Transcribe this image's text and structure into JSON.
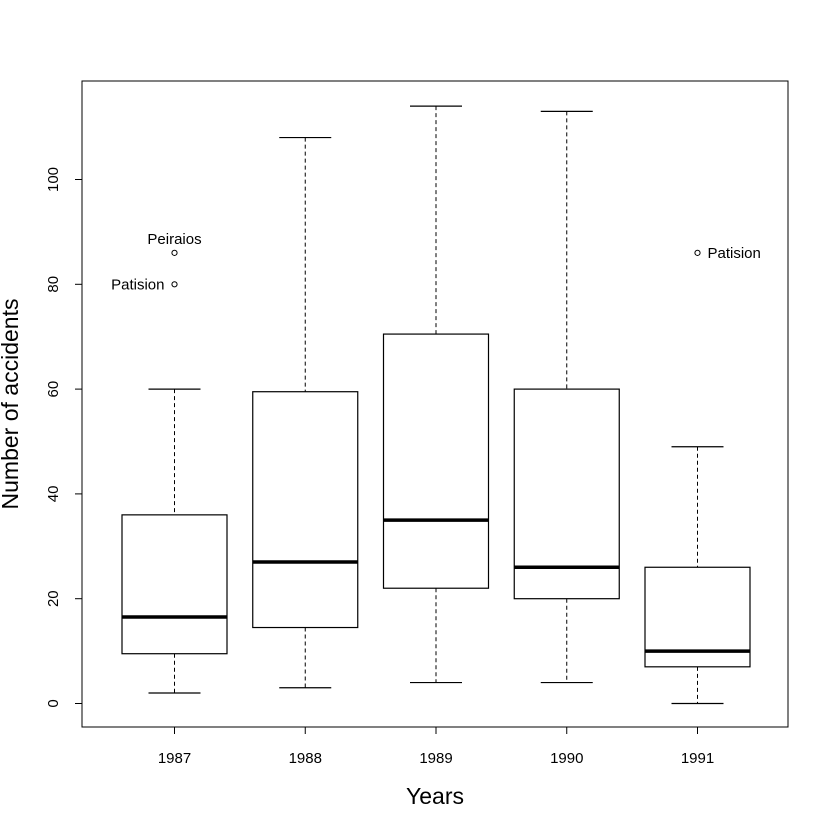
{
  "chart_data": {
    "type": "box",
    "title": "",
    "xlabel": "Years",
    "ylabel": "Number of accidents",
    "ylim": [
      -4.5,
      118
    ],
    "y_ticks": [
      0,
      20,
      40,
      60,
      80,
      100
    ],
    "categories": [
      "1987",
      "1988",
      "1989",
      "1990",
      "1991"
    ],
    "boxes": [
      {
        "category": "1987",
        "whisker_low": 2,
        "q1": 9.5,
        "median": 16.5,
        "q3": 36,
        "whisker_high": 60,
        "outliers": [
          {
            "value": 86,
            "label": "Peiraios"
          },
          {
            "value": 80,
            "label": "Patision"
          }
        ]
      },
      {
        "category": "1988",
        "whisker_low": 3,
        "q1": 14.5,
        "median": 27,
        "q3": 59.5,
        "whisker_high": 108,
        "outliers": []
      },
      {
        "category": "1989",
        "whisker_low": 4,
        "q1": 22,
        "median": 35,
        "q3": 70.5,
        "whisker_high": 114,
        "outliers": []
      },
      {
        "category": "1990",
        "whisker_low": 4,
        "q1": 20,
        "median": 26,
        "q3": 60,
        "whisker_high": 113,
        "outliers": []
      },
      {
        "category": "1991",
        "whisker_low": 0,
        "q1": 7,
        "median": 10,
        "q3": 26,
        "whisker_high": 49,
        "outliers": [
          {
            "value": 86,
            "label": "Patision"
          }
        ]
      }
    ],
    "grid": false,
    "legend": "none"
  }
}
